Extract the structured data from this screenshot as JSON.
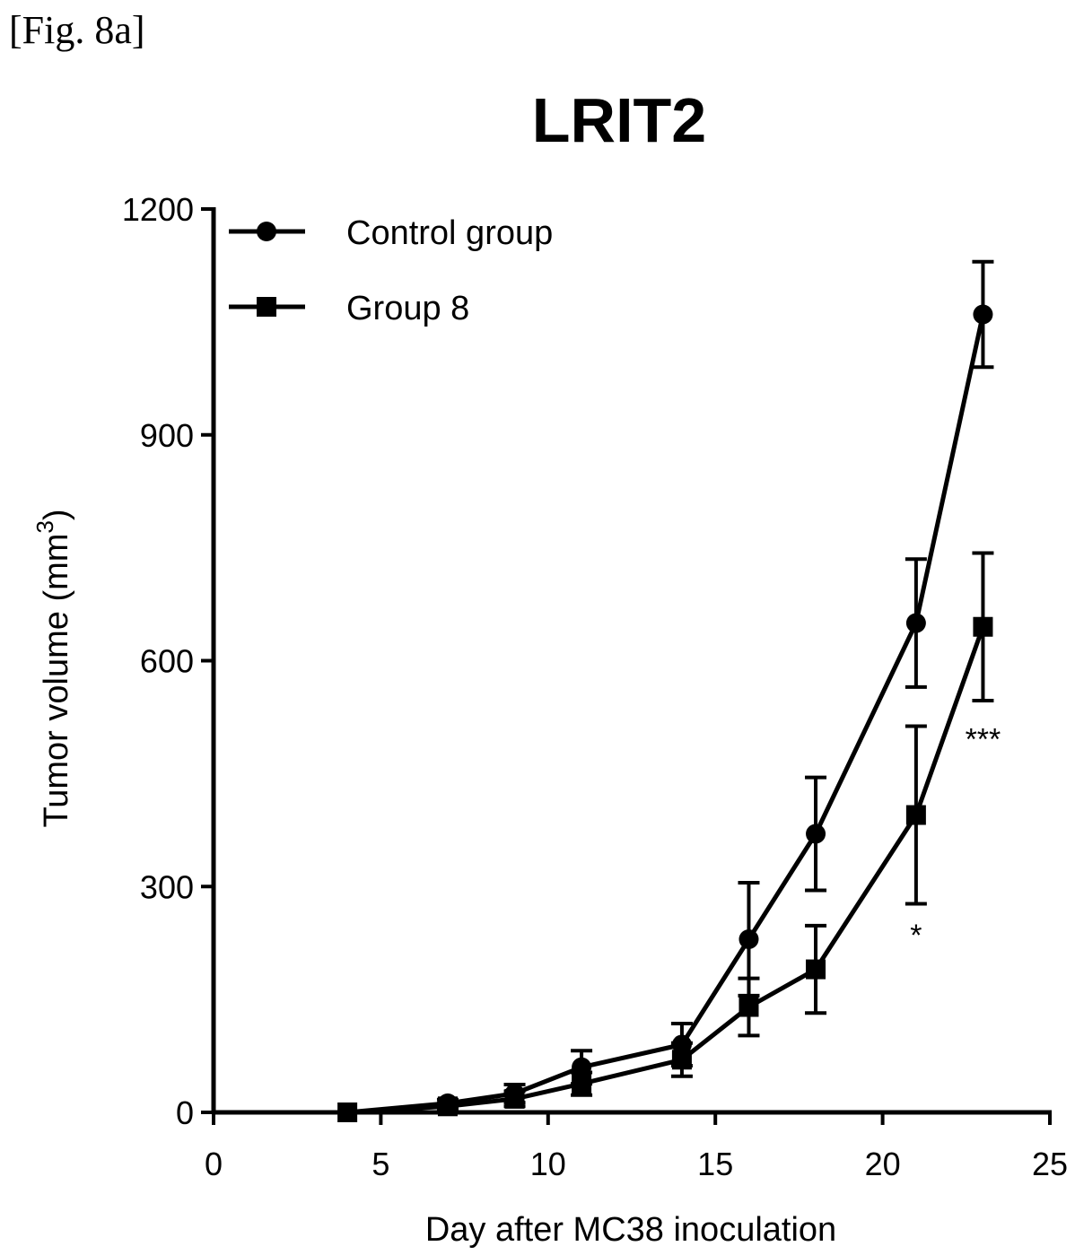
{
  "figure_label": "[Fig. 8a]",
  "chart_data": {
    "type": "line",
    "title": "LRIT2",
    "xlabel": "Day after MC38 inoculation",
    "ylabel": "Tumor volume (mm",
    "ylabel_superscript": "3",
    "ylabel_suffix": ")",
    "xlim": [
      0,
      25
    ],
    "ylim": [
      0,
      1200
    ],
    "xticks": [
      0,
      5,
      10,
      15,
      20,
      25
    ],
    "yticks": [
      0,
      300,
      600,
      900,
      1200
    ],
    "xtick_labels": [
      "0",
      "5",
      "10",
      "15",
      "20",
      "25"
    ],
    "ytick_labels": [
      "0",
      "300",
      "600",
      "900",
      "1200"
    ],
    "grid": false,
    "legend_position": "top-left",
    "series": [
      {
        "name": "Control group",
        "marker": "circle",
        "x": [
          4,
          7,
          9,
          11,
          14,
          16,
          18,
          21,
          23
        ],
        "y": [
          0,
          12,
          25,
          60,
          90,
          230,
          370,
          650,
          1060
        ],
        "err": [
          0,
          5,
          12,
          22,
          28,
          75,
          75,
          85,
          70
        ]
      },
      {
        "name": "Group 8",
        "marker": "square",
        "x": [
          4,
          7,
          9,
          11,
          14,
          16,
          18,
          21,
          23
        ],
        "y": [
          0,
          8,
          18,
          38,
          70,
          140,
          190,
          395,
          645
        ],
        "err": [
          0,
          4,
          10,
          15,
          22,
          38,
          58,
          118,
          98
        ]
      }
    ],
    "annotations": [
      {
        "text": "*",
        "x": 21,
        "y": 248
      },
      {
        "text": "***",
        "x": 23,
        "y": 508
      }
    ]
  }
}
